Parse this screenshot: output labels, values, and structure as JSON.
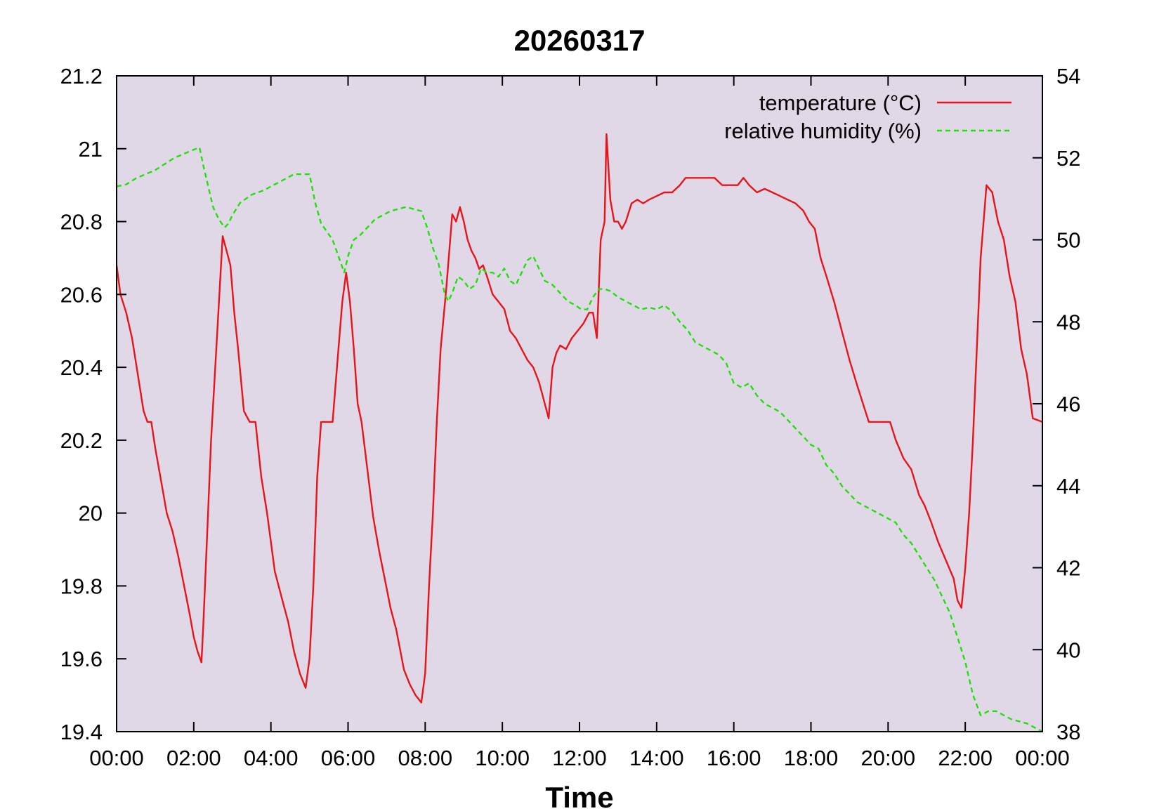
{
  "chart_data": {
    "type": "line",
    "title": "20260317",
    "xlabel": "Time",
    "ylabel": "",
    "y2label": "",
    "x_ticks": [
      "00:00",
      "02:00",
      "04:00",
      "06:00",
      "08:00",
      "10:00",
      "12:00",
      "14:00",
      "16:00",
      "18:00",
      "20:00",
      "22:00",
      "00:00"
    ],
    "xlim_hours": [
      0,
      24
    ],
    "ylim": [
      19.4,
      21.2
    ],
    "y_ticks": [
      "19.4",
      "19.6",
      "19.8",
      "20",
      "20.2",
      "20.4",
      "20.6",
      "20.8",
      "21",
      "21.2"
    ],
    "y2lim": [
      38,
      54
    ],
    "y2_ticks": [
      "38",
      "40",
      "42",
      "44",
      "46",
      "48",
      "50",
      "52",
      "54"
    ],
    "grid": false,
    "background": "#e0d8e6",
    "legend_position": "top-right",
    "series": [
      {
        "name": "temperature (°C)",
        "axis": "left",
        "color": "#e8141a",
        "dash": "solid",
        "x": [
          0.0,
          0.1,
          0.25,
          0.4,
          0.55,
          0.7,
          0.8,
          0.9,
          1.0,
          1.1,
          1.2,
          1.3,
          1.45,
          1.6,
          1.75,
          1.9,
          2.0,
          2.1,
          2.2,
          2.25,
          2.35,
          2.45,
          2.6,
          2.75,
          2.85,
          2.95,
          3.05,
          3.15,
          3.3,
          3.45,
          3.6,
          3.75,
          3.9,
          4.0,
          4.1,
          4.3,
          4.45,
          4.6,
          4.75,
          4.9,
          5.0,
          5.1,
          5.2,
          5.3,
          5.45,
          5.6,
          5.75,
          5.85,
          5.95,
          6.05,
          6.15,
          6.25,
          6.35,
          6.5,
          6.65,
          6.8,
          6.95,
          7.1,
          7.25,
          7.45,
          7.6,
          7.75,
          7.9,
          8.0,
          8.1,
          8.2,
          8.3,
          8.4,
          8.55,
          8.7,
          8.8,
          8.9,
          9.0,
          9.1,
          9.2,
          9.3,
          9.4,
          9.5,
          9.6,
          9.75,
          9.9,
          10.05,
          10.2,
          10.35,
          10.5,
          10.65,
          10.8,
          10.95,
          11.1,
          11.2,
          11.3,
          11.4,
          11.5,
          11.65,
          11.8,
          11.95,
          12.1,
          12.25,
          12.35,
          12.45,
          12.55,
          12.65,
          12.7,
          12.8,
          12.9,
          13.0,
          13.1,
          13.2,
          13.35,
          13.5,
          13.65,
          13.8,
          14.0,
          14.2,
          14.4,
          14.6,
          14.75,
          14.9,
          15.1,
          15.3,
          15.5,
          15.7,
          15.9,
          16.1,
          16.25,
          16.4,
          16.6,
          16.8,
          17.0,
          17.2,
          17.4,
          17.6,
          17.8,
          17.95,
          18.1,
          18.25,
          18.4,
          18.6,
          18.8,
          19.0,
          19.2,
          19.35,
          19.5,
          19.7,
          19.9,
          20.05,
          20.2,
          20.4,
          20.6,
          20.8,
          20.95,
          21.1,
          21.3,
          21.5,
          21.7,
          21.8,
          21.9,
          22.0,
          22.1,
          22.2,
          22.3,
          22.4,
          22.55,
          22.7,
          22.85,
          23.0,
          23.15,
          23.3,
          23.45,
          23.6,
          23.75,
          24.0
        ],
        "y": [
          20.68,
          20.6,
          20.55,
          20.48,
          20.38,
          20.28,
          20.25,
          20.25,
          20.18,
          20.12,
          20.06,
          20.0,
          19.95,
          19.88,
          19.8,
          19.72,
          19.66,
          19.62,
          19.59,
          19.7,
          19.95,
          20.2,
          20.48,
          20.76,
          20.72,
          20.68,
          20.55,
          20.45,
          20.28,
          20.25,
          20.25,
          20.1,
          20.0,
          19.92,
          19.84,
          19.76,
          19.7,
          19.62,
          19.56,
          19.52,
          19.6,
          19.8,
          20.1,
          20.25,
          20.25,
          20.25,
          20.45,
          20.58,
          20.66,
          20.58,
          20.45,
          20.3,
          20.25,
          20.12,
          19.99,
          19.9,
          19.82,
          19.74,
          19.68,
          19.57,
          19.53,
          19.5,
          19.48,
          19.56,
          19.8,
          20.0,
          20.25,
          20.45,
          20.62,
          20.82,
          20.8,
          20.84,
          20.8,
          20.75,
          20.72,
          20.7,
          20.67,
          20.68,
          20.65,
          20.6,
          20.58,
          20.56,
          20.5,
          20.48,
          20.45,
          20.42,
          20.4,
          20.36,
          20.3,
          20.26,
          20.4,
          20.44,
          20.46,
          20.45,
          20.48,
          20.5,
          20.52,
          20.55,
          20.55,
          20.48,
          20.75,
          20.8,
          21.04,
          20.86,
          20.8,
          20.8,
          20.78,
          20.8,
          20.85,
          20.86,
          20.85,
          20.86,
          20.87,
          20.88,
          20.88,
          20.9,
          20.92,
          20.92,
          20.92,
          20.92,
          20.92,
          20.9,
          20.9,
          20.9,
          20.92,
          20.9,
          20.88,
          20.89,
          20.88,
          20.87,
          20.86,
          20.85,
          20.83,
          20.8,
          20.78,
          20.7,
          20.65,
          20.58,
          20.5,
          20.42,
          20.35,
          20.3,
          20.25,
          20.25,
          20.25,
          20.25,
          20.2,
          20.15,
          20.12,
          20.05,
          20.02,
          19.98,
          19.92,
          19.87,
          19.82,
          19.76,
          19.74,
          19.85,
          20.0,
          20.2,
          20.45,
          20.7,
          20.9,
          20.88,
          20.8,
          20.75,
          20.65,
          20.58,
          20.45,
          20.38,
          20.26,
          20.25
        ]
      },
      {
        "name": "relative humidity (%)",
        "axis": "right",
        "color": "#22e00c",
        "dash": "dashed",
        "x": [
          0.0,
          0.25,
          0.5,
          0.75,
          1.0,
          1.25,
          1.5,
          1.75,
          2.0,
          2.15,
          2.25,
          2.35,
          2.5,
          2.65,
          2.8,
          2.9,
          3.0,
          3.2,
          3.5,
          3.8,
          4.0,
          4.3,
          4.6,
          4.8,
          5.0,
          5.15,
          5.3,
          5.45,
          5.6,
          5.75,
          5.9,
          6.0,
          6.15,
          6.3,
          6.5,
          6.7,
          6.9,
          7.1,
          7.3,
          7.5,
          7.7,
          7.9,
          8.05,
          8.2,
          8.35,
          8.5,
          8.6,
          8.7,
          8.85,
          9.0,
          9.15,
          9.3,
          9.45,
          9.6,
          9.75,
          9.9,
          10.05,
          10.2,
          10.35,
          10.5,
          10.65,
          10.8,
          10.95,
          11.1,
          11.3,
          11.5,
          11.7,
          11.9,
          12.05,
          12.2,
          12.35,
          12.5,
          12.65,
          12.8,
          13.0,
          13.2,
          13.4,
          13.6,
          13.8,
          14.0,
          14.2,
          14.4,
          14.6,
          14.8,
          15.0,
          15.2,
          15.4,
          15.6,
          15.8,
          16.0,
          16.2,
          16.4,
          16.6,
          16.8,
          17.0,
          17.2,
          17.4,
          17.6,
          17.8,
          18.0,
          18.2,
          18.4,
          18.6,
          18.8,
          19.0,
          19.2,
          19.4,
          19.6,
          19.8,
          20.0,
          20.2,
          20.4,
          20.6,
          20.8,
          21.0,
          21.2,
          21.4,
          21.6,
          21.8,
          22.0,
          22.2,
          22.4,
          22.6,
          22.8,
          23.0,
          23.2,
          23.4,
          23.6,
          23.8,
          24.0
        ],
        "y": [
          51.3,
          51.35,
          51.5,
          51.6,
          51.7,
          51.85,
          52.0,
          52.1,
          52.2,
          52.25,
          51.8,
          51.4,
          50.8,
          50.5,
          50.3,
          50.4,
          50.6,
          50.9,
          51.1,
          51.2,
          51.3,
          51.45,
          51.6,
          51.6,
          51.6,
          50.9,
          50.4,
          50.2,
          50.0,
          49.6,
          49.2,
          49.6,
          50.0,
          50.1,
          50.3,
          50.5,
          50.6,
          50.7,
          50.75,
          50.8,
          50.75,
          50.7,
          50.3,
          49.8,
          49.4,
          48.7,
          48.5,
          48.7,
          49.1,
          49.0,
          48.8,
          48.9,
          49.3,
          49.2,
          49.2,
          49.1,
          49.3,
          49.0,
          48.9,
          49.2,
          49.5,
          49.6,
          49.3,
          49.0,
          48.9,
          48.7,
          48.5,
          48.4,
          48.3,
          48.3,
          48.6,
          48.8,
          48.8,
          48.75,
          48.6,
          48.5,
          48.4,
          48.3,
          48.35,
          48.3,
          48.4,
          48.25,
          48.0,
          47.8,
          47.5,
          47.4,
          47.3,
          47.2,
          47.0,
          46.5,
          46.4,
          46.5,
          46.2,
          46.0,
          45.9,
          45.8,
          45.6,
          45.4,
          45.2,
          45.0,
          44.9,
          44.5,
          44.3,
          44.0,
          43.8,
          43.6,
          43.5,
          43.4,
          43.3,
          43.2,
          43.1,
          42.8,
          42.6,
          42.3,
          42.0,
          41.7,
          41.3,
          40.9,
          40.3,
          39.7,
          38.9,
          38.4,
          38.5,
          38.5,
          38.4,
          38.3,
          38.25,
          38.2,
          38.1,
          38.0
        ]
      }
    ]
  }
}
